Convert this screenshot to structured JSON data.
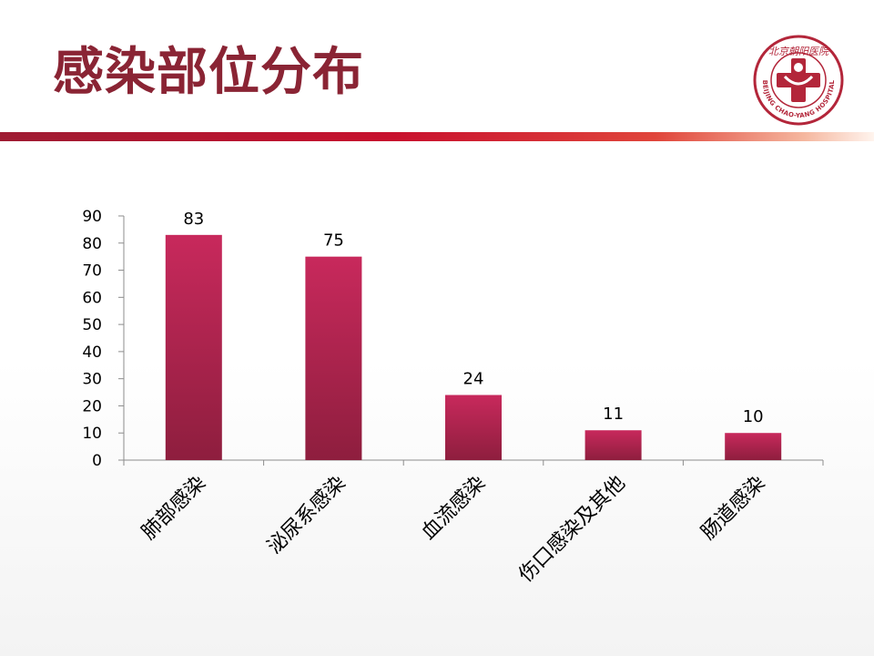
{
  "slide": {
    "title": "感染部位分布"
  },
  "logo": {
    "icon": "hospital-cross-logo",
    "ring_text": "BEIJING CHAO-YANG HOSPITAL",
    "top_text": "北京朝阳医院",
    "color": "#b3263a"
  },
  "colors": {
    "title": "#8a2434",
    "bar_top": "#c8295c",
    "bar_bottom": "#8e1e3e"
  },
  "chart_data": {
    "type": "bar",
    "title": "",
    "xlabel": "",
    "ylabel": "",
    "categories": [
      "肺部感染",
      "泌尿系感染",
      "血流感染",
      "伤口感染及其他",
      "肠道感染"
    ],
    "values": [
      83,
      75,
      24,
      11,
      10
    ],
    "ylim": [
      0,
      90
    ],
    "yticks": [
      0,
      10,
      20,
      30,
      40,
      50,
      60,
      70,
      80,
      90
    ],
    "data_labels": [
      "83",
      "75",
      "24",
      "11",
      "10"
    ],
    "grid": false,
    "legend": "none"
  }
}
